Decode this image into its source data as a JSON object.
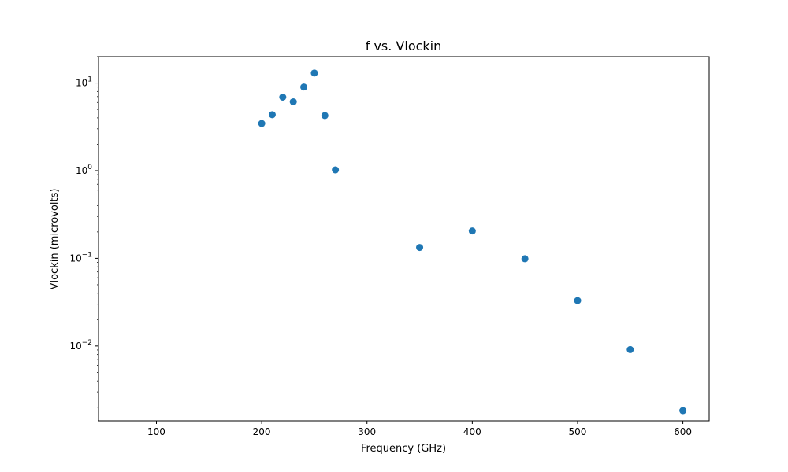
{
  "chart_data": {
    "type": "scatter",
    "title": "f vs. Vlockin",
    "xlabel": "Frequency (GHz)",
    "ylabel": "Vlockin (microvolts)",
    "xlim": [
      45,
      625
    ],
    "ylim": [
      0.0014,
      20
    ],
    "yscale": "log",
    "grid": false,
    "marker_color": "#1f77b4",
    "x_ticks": [
      100,
      200,
      300,
      400,
      500,
      600
    ],
    "y_ticks": [
      {
        "value": 0.01,
        "base": "10",
        "exp": "−2"
      },
      {
        "value": 0.1,
        "base": "10",
        "exp": "−1"
      },
      {
        "value": 1,
        "base": "10",
        "exp": "0"
      },
      {
        "value": 10,
        "base": "10",
        "exp": "1"
      }
    ],
    "points": [
      {
        "x": 200,
        "y": 3.45
      },
      {
        "x": 210,
        "y": 4.35
      },
      {
        "x": 220,
        "y": 6.9
      },
      {
        "x": 230,
        "y": 6.1
      },
      {
        "x": 240,
        "y": 9.0
      },
      {
        "x": 250,
        "y": 13.0
      },
      {
        "x": 260,
        "y": 4.25
      },
      {
        "x": 270,
        "y": 1.02
      },
      {
        "x": 350,
        "y": 0.133
      },
      {
        "x": 400,
        "y": 0.205
      },
      {
        "x": 450,
        "y": 0.099
      },
      {
        "x": 500,
        "y": 0.033
      },
      {
        "x": 550,
        "y": 0.0091
      },
      {
        "x": 600,
        "y": 0.00183
      }
    ]
  }
}
